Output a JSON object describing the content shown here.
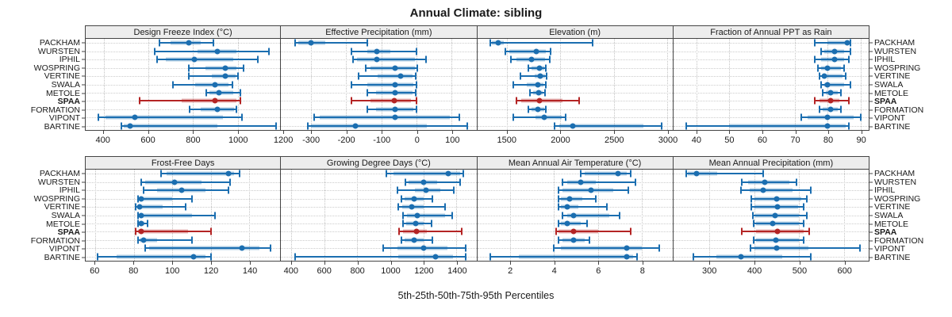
{
  "title": "Annual Climate: sibling",
  "caption": "5th-25th-50th-75th-95th Percentiles",
  "colors": {
    "blue": "#1b6eb0",
    "blue_fill": "rgba(27,110,176,0.35)",
    "red": "#b42424",
    "red_fill": "rgba(180,36,36,0.35)",
    "strip_bg": "#ededed",
    "border": "#444444",
    "grid": "#c3c3c3",
    "text": "#1a1a1a"
  },
  "chart_data": {
    "type": "dotplot-percentiles",
    "percentile_labels": [
      "5th",
      "25th",
      "50th",
      "75th",
      "95th"
    ],
    "sites": [
      "PACKHAM",
      "WURSTEN",
      "IPHIL",
      "WOSPRING",
      "VERTINE",
      "SWALA",
      "METOLE",
      "SPAA",
      "FORMATION",
      "VIPONT",
      "BARTINE"
    ],
    "highlight_site": "SPAA",
    "panels": [
      {
        "title": "Design Freeze Index (°C)",
        "band": 0,
        "xlim": [
          320,
          1190
        ],
        "ticks": [
          400,
          600,
          800,
          1000,
          1200
        ],
        "values": [
          [
            650,
            700,
            780,
            835,
            890
          ],
          [
            630,
            820,
            910,
            995,
            1140
          ],
          [
            640,
            680,
            805,
            980,
            1090
          ],
          [
            780,
            855,
            945,
            995,
            1025
          ],
          [
            780,
            885,
            945,
            990,
            1000
          ],
          [
            710,
            810,
            900,
            960,
            975
          ],
          [
            860,
            875,
            915,
            980,
            1010
          ],
          [
            560,
            750,
            900,
            995,
            1010
          ],
          [
            785,
            835,
            910,
            985,
            995
          ],
          [
            375,
            410,
            540,
            935,
            1020
          ],
          [
            480,
            490,
            520,
            910,
            1170
          ]
        ]
      },
      {
        "title": "Effective Precipitation (mm)",
        "band": 0,
        "xlim": [
          -385,
          170
        ],
        "ticks": [
          -300,
          -200,
          -100,
          0,
          100
        ],
        "values": [
          [
            -345,
            -335,
            -300,
            -260,
            -140
          ],
          [
            -185,
            -140,
            -112,
            -75,
            0
          ],
          [
            -180,
            -170,
            -113,
            -5,
            28
          ],
          [
            -145,
            -130,
            -60,
            -5,
            2
          ],
          [
            -165,
            -110,
            -45,
            -12,
            -2
          ],
          [
            -185,
            -140,
            -60,
            -10,
            0
          ],
          [
            -140,
            -115,
            -60,
            -12,
            -3
          ],
          [
            -185,
            -130,
            -63,
            -15,
            0
          ],
          [
            -140,
            -115,
            -60,
            -10,
            0
          ],
          [
            -290,
            -275,
            -60,
            95,
            122
          ],
          [
            -310,
            -300,
            -174,
            30,
            145
          ]
        ]
      },
      {
        "title": "Elevation (m)",
        "band": 0,
        "xlim": [
          1225,
          3050
        ],
        "ticks": [
          1500,
          2000,
          2500,
          3000
        ],
        "values": [
          [
            1350,
            1365,
            1425,
            1470,
            2300
          ],
          [
            1485,
            1525,
            1775,
            1865,
            1910
          ],
          [
            1540,
            1590,
            1730,
            1860,
            1900
          ],
          [
            1700,
            1730,
            1810,
            1850,
            1865
          ],
          [
            1630,
            1760,
            1815,
            1855,
            1870
          ],
          [
            1560,
            1690,
            1795,
            1845,
            1865
          ],
          [
            1720,
            1745,
            1800,
            1840,
            1860
          ],
          [
            1590,
            1640,
            1810,
            2020,
            2175
          ],
          [
            1700,
            1730,
            1790,
            1850,
            1865
          ],
          [
            1565,
            1770,
            1850,
            2015,
            2055
          ],
          [
            1945,
            1990,
            2115,
            2775,
            2950
          ]
        ]
      },
      {
        "title": "Fraction of Annual PPT as Rain",
        "band": 0,
        "xlim": [
          33,
          92.5
        ],
        "ticks": [
          40,
          50,
          60,
          70,
          80,
          90
        ],
        "values": [
          [
            76,
            80,
            86,
            86.5,
            87
          ],
          [
            78,
            79,
            82,
            85,
            87
          ],
          [
            76,
            78,
            82,
            85,
            86.5
          ],
          [
            77,
            78,
            80,
            84,
            85
          ],
          [
            77.5,
            78.5,
            79,
            84.5,
            85.5
          ],
          [
            78,
            79,
            80,
            85,
            87
          ],
          [
            78.5,
            79.5,
            81,
            83,
            84
          ],
          [
            76,
            77.5,
            81,
            83.5,
            86.5
          ],
          [
            77.5,
            78.5,
            81,
            83,
            84
          ],
          [
            72,
            74,
            80,
            88,
            90
          ],
          [
            37,
            50,
            80,
            85.5,
            86.5
          ]
        ]
      },
      {
        "title": "Frost-Free Days",
        "band": 1,
        "xlim": [
          55,
          156
        ],
        "ticks": [
          60,
          80,
          100,
          120,
          140
        ],
        "values": [
          [
            94,
            97,
            129,
            132,
            135
          ],
          [
            84,
            86,
            101,
            115,
            130
          ],
          [
            85,
            92,
            105,
            117,
            129
          ],
          [
            82,
            83,
            84,
            100,
            110
          ],
          [
            81,
            82,
            83,
            95,
            107
          ],
          [
            82,
            83,
            84,
            110,
            122
          ],
          [
            82,
            82.5,
            84,
            85.5,
            87
          ],
          [
            81,
            82,
            84,
            108,
            120
          ],
          [
            82,
            83,
            85,
            92,
            110
          ],
          [
            86,
            88,
            136,
            145,
            151
          ],
          [
            61,
            71,
            111,
            117,
            120
          ]
        ]
      },
      {
        "title": "Growing Degree Days (°C)",
        "band": 1,
        "xlim": [
          340,
          1520
        ],
        "ticks": [
          400,
          600,
          800,
          1000,
          1200,
          1400
        ],
        "values": [
          [
            975,
            1020,
            1350,
            1420,
            1440
          ],
          [
            1090,
            1110,
            1200,
            1285,
            1420
          ],
          [
            1045,
            1150,
            1215,
            1300,
            1385
          ],
          [
            1065,
            1085,
            1145,
            1200,
            1255
          ],
          [
            1050,
            1070,
            1130,
            1200,
            1330
          ],
          [
            1075,
            1100,
            1165,
            1330,
            1375
          ],
          [
            1075,
            1095,
            1155,
            1200,
            1250
          ],
          [
            1055,
            1075,
            1160,
            1220,
            1430
          ],
          [
            1065,
            1085,
            1145,
            1200,
            1255
          ],
          [
            955,
            1045,
            1200,
            1345,
            1455
          ],
          [
            425,
            1050,
            1275,
            1380,
            1455
          ]
        ]
      },
      {
        "title": "Mean Annual Air Temperature (°C)",
        "band": 1,
        "xlim": [
          0.5,
          9.4
        ],
        "ticks": [
          2,
          4,
          6,
          8
        ],
        "values": [
          [
            5.2,
            5.4,
            6.9,
            7.3,
            7.5
          ],
          [
            4.4,
            4.6,
            5.2,
            5.9,
            7.7
          ],
          [
            4.2,
            4.4,
            5.7,
            6.7,
            7.4
          ],
          [
            4.2,
            4.3,
            4.7,
            5.3,
            5.9
          ],
          [
            4.2,
            4.3,
            4.6,
            5.1,
            6.4
          ],
          [
            4.4,
            4.6,
            4.9,
            6.5,
            7.0
          ],
          [
            4.2,
            4.3,
            4.6,
            5.2,
            5.5
          ],
          [
            4.1,
            4.2,
            4.9,
            6.0,
            7.5
          ],
          [
            4.2,
            4.4,
            4.9,
            5.4,
            5.6
          ],
          [
            4.0,
            4.3,
            7.3,
            8.0,
            8.8
          ],
          [
            1.1,
            2.4,
            7.3,
            7.6,
            7.8
          ]
        ]
      },
      {
        "title": "Mean Annual Precipitation (mm)",
        "band": 1,
        "xlim": [
          220,
          655
        ],
        "ticks": [
          300,
          400,
          500,
          600
        ],
        "values": [
          [
            248,
            252,
            272,
            318,
            420
          ],
          [
            372,
            386,
            423,
            478,
            494
          ],
          [
            370,
            390,
            420,
            486,
            526
          ],
          [
            394,
            401,
            450,
            505,
            517
          ],
          [
            394,
            400,
            451,
            497,
            511
          ],
          [
            397,
            403,
            446,
            500,
            517
          ],
          [
            399,
            404,
            442,
            499,
            511
          ],
          [
            372,
            405,
            452,
            511,
            522
          ],
          [
            399,
            405,
            448,
            499,
            511
          ],
          [
            392,
            400,
            450,
            520,
            635
          ],
          [
            264,
            316,
            370,
            463,
            526
          ]
        ]
      }
    ]
  }
}
